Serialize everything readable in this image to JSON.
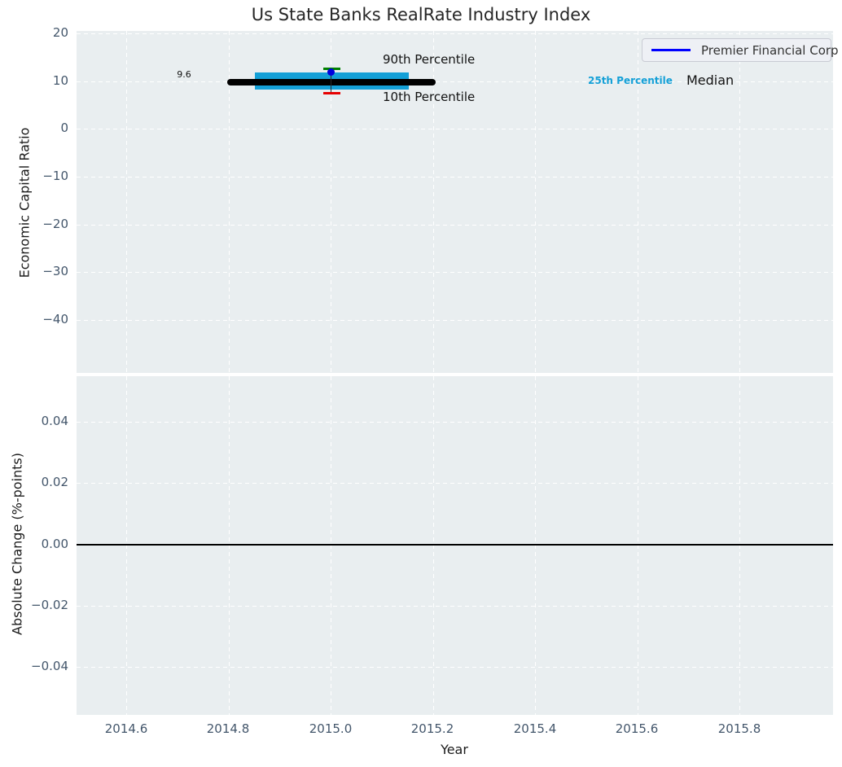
{
  "title": "Us State Banks RealRate Industry Index",
  "colors": {
    "plot_background": "#e9eef0",
    "grid": "#ffffff",
    "tick_text": "#43566b",
    "percentile_band": "#14a0d7",
    "median_line": "#000000",
    "p90_cap": "#008000",
    "p10_cap": "#e60000",
    "company_dot": "#0000dd",
    "legend_line": "#0000ff"
  },
  "legend": {
    "entries": [
      {
        "label": "Premier Financial Corp",
        "color": "#0000ff"
      }
    ],
    "position": "upper right"
  },
  "annotations": {
    "median_value": "9.6",
    "p90": "90th Percentile",
    "p10": "10th Percentile",
    "p25": "25th Percentile",
    "median": "Median"
  },
  "chart_data": [
    {
      "type": "line",
      "title": "Us State Banks RealRate Industry Index",
      "xlabel": "Year",
      "ylabel": "Economic Capital Ratio",
      "xlim": [
        2014.5,
        2015.98
      ],
      "ylim": [
        -51,
        20.5
      ],
      "xticks": [
        2014.6,
        2014.8,
        2015.0,
        2015.2,
        2015.4,
        2015.6,
        2015.8
      ],
      "yticks": [
        20,
        10,
        0,
        -10,
        -20,
        -30,
        -40
      ],
      "xtick_labels": [
        "2014.6",
        "2014.8",
        "2015.0",
        "2015.2",
        "2015.4",
        "2015.6",
        "2015.8"
      ],
      "ytick_labels": [
        "20",
        "10",
        "0",
        "−10",
        "−20",
        "−30",
        "−40"
      ],
      "grid": "white dashed, on",
      "legend_position": "upper right",
      "series": [
        {
          "name": "Median",
          "type": "line",
          "color": "#000000",
          "x": [
            2014.8,
            2015.2
          ],
          "y": [
            9.6,
            9.6
          ],
          "value_label": "9.6"
        },
        {
          "name": "25th-75th Percentile band",
          "type": "area",
          "color": "#14a0d7",
          "x": [
            2014.85,
            2015.15
          ],
          "y_low": 8.2,
          "y_high": 11.2
        },
        {
          "name": "90th Percentile",
          "type": "errorbar-cap",
          "color": "#008000",
          "x": 2015.0,
          "y": 12.8
        },
        {
          "name": "10th Percentile",
          "type": "errorbar-cap",
          "color": "#e60000",
          "x": 2015.0,
          "y": 7.6
        },
        {
          "name": "Premier Financial Corp",
          "type": "scatter",
          "color": "#0000dd",
          "x": [
            2015.0
          ],
          "y": [
            11.9
          ]
        }
      ],
      "annotations": [
        "9.6",
        "90th Percentile",
        "10th Percentile",
        "25th Percentile",
        "Median"
      ]
    },
    {
      "type": "line",
      "title": "",
      "xlabel": "Year",
      "ylabel": "Absolute Change (%-points)",
      "xlim": [
        2014.5,
        2015.98
      ],
      "ylim": [
        -0.055,
        0.055
      ],
      "xticks": [
        2014.6,
        2014.8,
        2015.0,
        2015.2,
        2015.4,
        2015.6,
        2015.8
      ],
      "yticks": [
        0.04,
        0.02,
        0.0,
        -0.02,
        -0.04
      ],
      "xtick_labels": [
        "2014.6",
        "2014.8",
        "2015.0",
        "2015.2",
        "2015.4",
        "2015.6",
        "2015.8"
      ],
      "ytick_labels": [
        "0.04",
        "0.02",
        "0.00",
        "−0.02",
        "−0.04"
      ],
      "grid": "white dashed, on",
      "series": [],
      "reference_line": {
        "y": 0.0,
        "color": "#000000"
      }
    }
  ],
  "axis_labels": {
    "top_y": "Economic Capital Ratio",
    "bottom_y": "Absolute Change (%-points)",
    "x": "Year"
  }
}
